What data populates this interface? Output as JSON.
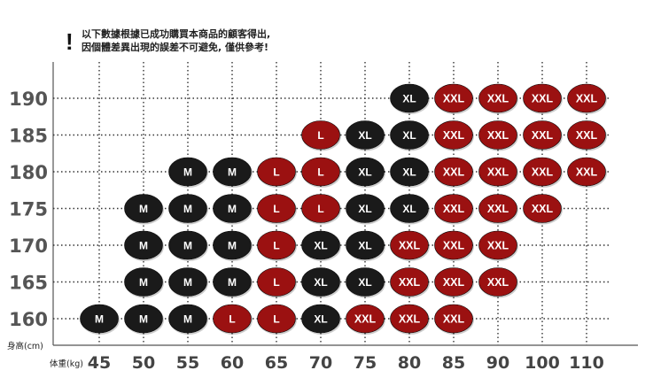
{
  "notice": {
    "symbol": "!",
    "line1": "以下數據根據已成功購買本商品的顧客得出,",
    "line2": "因個體差異出現的誤差不可避免, 僅供參考!"
  },
  "chart_data": {
    "type": "scatter",
    "title": "",
    "xlabel": "体重(kg)",
    "ylabel": "身高(cm)",
    "x_ticks": [
      45,
      50,
      55,
      60,
      65,
      70,
      75,
      80,
      85,
      90,
      100,
      110
    ],
    "y_ticks": [
      160,
      165,
      170,
      175,
      180,
      185,
      190
    ],
    "grid": true,
    "colors": {
      "M": "#1a1a1a",
      "XL": "#1a1a1a",
      "L": "#9b1111",
      "XXL": "#9b1111"
    },
    "rows": [
      {
        "height": 190,
        "cells": [
          [
            "80",
            "XL"
          ],
          [
            "85",
            "XXL"
          ],
          [
            "90",
            "XXL"
          ],
          [
            "100",
            "XXL"
          ],
          [
            "110",
            "XXL"
          ]
        ]
      },
      {
        "height": 185,
        "cells": [
          [
            "70",
            "L"
          ],
          [
            "75",
            "XL"
          ],
          [
            "80",
            "XL"
          ],
          [
            "85",
            "XXL"
          ],
          [
            "90",
            "XXL"
          ],
          [
            "100",
            "XXL"
          ],
          [
            "110",
            "XXL"
          ]
        ]
      },
      {
        "height": 180,
        "cells": [
          [
            "55",
            "M"
          ],
          [
            "60",
            "M"
          ],
          [
            "65",
            "L"
          ],
          [
            "70",
            "L"
          ],
          [
            "75",
            "XL"
          ],
          [
            "80",
            "XL"
          ],
          [
            "85",
            "XXL"
          ],
          [
            "90",
            "XXL"
          ],
          [
            "100",
            "XXL"
          ],
          [
            "110",
            "XXL"
          ]
        ]
      },
      {
        "height": 175,
        "cells": [
          [
            "50",
            "M"
          ],
          [
            "55",
            "M"
          ],
          [
            "60",
            "M"
          ],
          [
            "65",
            "L"
          ],
          [
            "70",
            "L"
          ],
          [
            "75",
            "XL"
          ],
          [
            "80",
            "XL"
          ],
          [
            "85",
            "XXL"
          ],
          [
            "90",
            "XXL"
          ],
          [
            "100",
            "XXL"
          ]
        ]
      },
      {
        "height": 170,
        "cells": [
          [
            "50",
            "M"
          ],
          [
            "55",
            "M"
          ],
          [
            "60",
            "M"
          ],
          [
            "65",
            "L"
          ],
          [
            "70",
            "XL"
          ],
          [
            "75",
            "XL"
          ],
          [
            "80",
            "XXL"
          ],
          [
            "85",
            "XXL"
          ],
          [
            "90",
            "XXL"
          ]
        ]
      },
      {
        "height": 165,
        "cells": [
          [
            "50",
            "M"
          ],
          [
            "55",
            "M"
          ],
          [
            "60",
            "M"
          ],
          [
            "65",
            "L"
          ],
          [
            "70",
            "XL"
          ],
          [
            "75",
            "XL"
          ],
          [
            "80",
            "XXL"
          ],
          [
            "85",
            "XXL"
          ],
          [
            "90",
            "XXL"
          ]
        ]
      },
      {
        "height": 160,
        "cells": [
          [
            "45",
            "M"
          ],
          [
            "50",
            "M"
          ],
          [
            "55",
            "M"
          ],
          [
            "60",
            "L"
          ],
          [
            "65",
            "L"
          ],
          [
            "70",
            "XL"
          ],
          [
            "75",
            "XXL"
          ],
          [
            "80",
            "XXL"
          ],
          [
            "85",
            "XXL"
          ]
        ]
      }
    ]
  }
}
